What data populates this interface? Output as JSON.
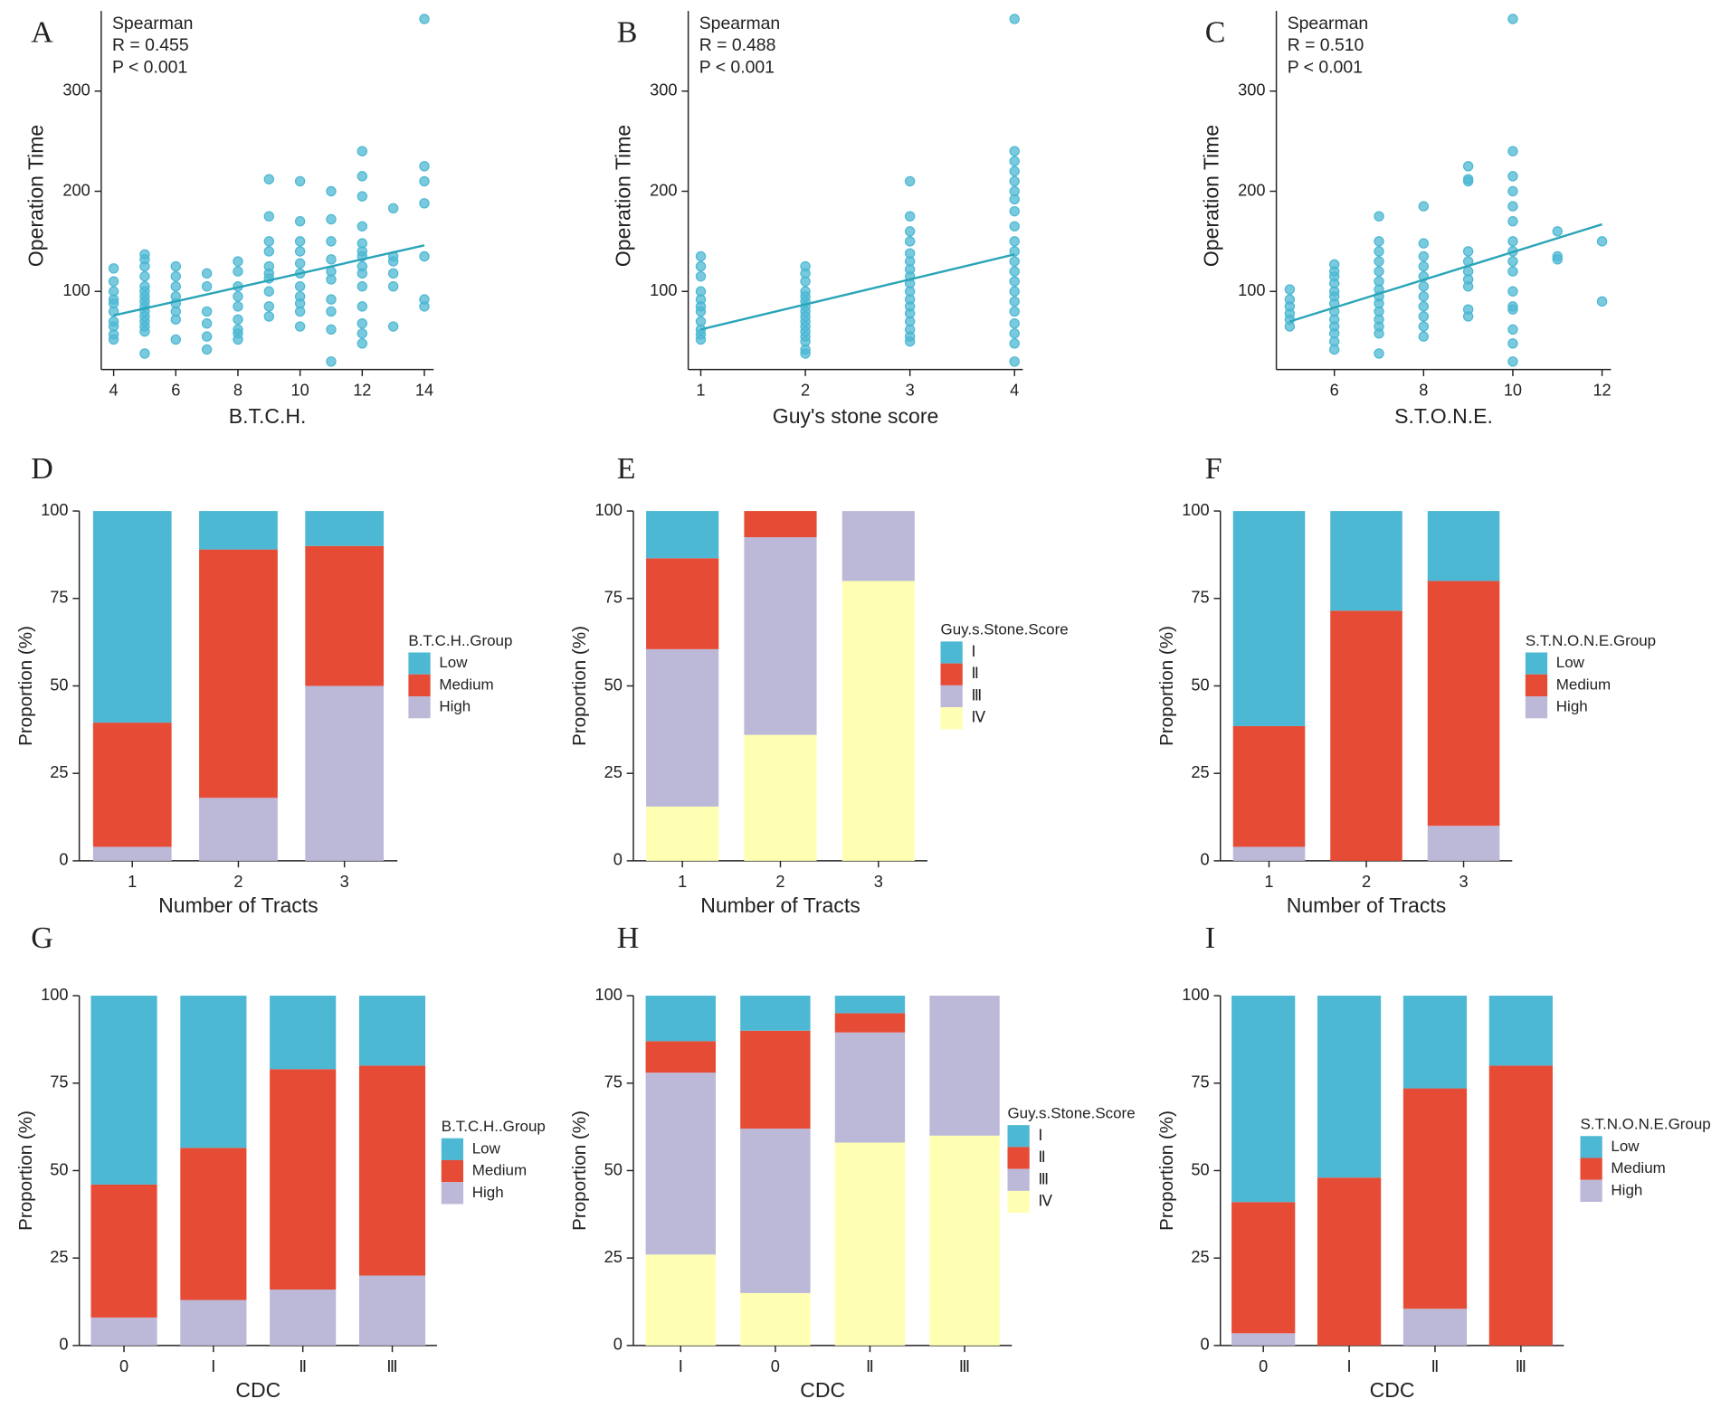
{
  "chart_data": [
    {
      "type": "scatter",
      "label": "A",
      "annotations": [
        "Spearman",
        "R = 0.455",
        "P < 0.001"
      ],
      "xlabel": "B.T.C.H.",
      "ylabel": "Operation Time",
      "color": "#4db8d3",
      "x": [
        4,
        4,
        4,
        4,
        4,
        4,
        4,
        4,
        4,
        4,
        5,
        5,
        5,
        5,
        5,
        5,
        5,
        5,
        5,
        5,
        5,
        5,
        5,
        5,
        5,
        6,
        6,
        6,
        6,
        6,
        6,
        6,
        6,
        7,
        7,
        7,
        7,
        7,
        7,
        8,
        8,
        8,
        8,
        8,
        8,
        8,
        8,
        8,
        9,
        9,
        9,
        9,
        9,
        9,
        9,
        9,
        9,
        9,
        10,
        10,
        10,
        10,
        10,
        10,
        10,
        10,
        10,
        10,
        10,
        11,
        11,
        11,
        11,
        11,
        11,
        11,
        11,
        11,
        11,
        12,
        12,
        12,
        12,
        12,
        12,
        12,
        12,
        12,
        12,
        12,
        12,
        12,
        12,
        13,
        13,
        13,
        13,
        13,
        13,
        14,
        14,
        14,
        14,
        14,
        14,
        14
      ],
      "y": [
        52,
        57,
        65,
        70,
        80,
        88,
        92,
        100,
        110,
        123,
        38,
        60,
        65,
        70,
        75,
        80,
        85,
        90,
        95,
        100,
        105,
        115,
        125,
        132,
        137,
        52,
        72,
        80,
        88,
        95,
        105,
        115,
        125,
        42,
        55,
        68,
        80,
        105,
        118,
        52,
        58,
        62,
        72,
        85,
        95,
        105,
        120,
        130,
        75,
        85,
        100,
        113,
        118,
        125,
        140,
        150,
        175,
        212,
        65,
        80,
        88,
        95,
        105,
        118,
        128,
        140,
        150,
        170,
        210,
        30,
        62,
        80,
        92,
        112,
        120,
        132,
        150,
        172,
        200,
        48,
        58,
        68,
        85,
        105,
        118,
        125,
        135,
        140,
        148,
        165,
        195,
        215,
        240,
        65,
        105,
        118,
        130,
        135,
        183,
        85,
        92,
        135,
        188,
        210,
        225,
        372
      ],
      "trend": {
        "x": [
          4,
          14
        ],
        "y": [
          76,
          146
        ]
      },
      "xlim": [
        3.6,
        14.3
      ],
      "ylim": [
        22,
        380
      ],
      "xticks": [
        4,
        6,
        8,
        10,
        12,
        14
      ],
      "yticks": [
        100,
        200,
        300
      ]
    },
    {
      "type": "scatter",
      "label": "B",
      "annotations": [
        "Spearman",
        "R = 0.488",
        "P < 0.001"
      ],
      "xlabel": "Guy's stone score",
      "ylabel": "Operation Time",
      "color": "#4db8d3",
      "x": [
        1,
        1,
        1,
        1,
        1,
        1,
        1,
        1,
        1,
        1,
        1,
        2,
        2,
        2,
        2,
        2,
        2,
        2,
        2,
        2,
        2,
        2,
        2,
        2,
        2,
        2,
        2,
        3,
        3,
        3,
        3,
        3,
        3,
        3,
        3,
        3,
        3,
        3,
        3,
        3,
        3,
        3,
        3,
        3,
        4,
        4,
        4,
        4,
        4,
        4,
        4,
        4,
        4,
        4,
        4,
        4,
        4,
        4,
        4,
        4,
        4,
        4,
        4,
        4,
        4
      ],
      "y": [
        52,
        57,
        62,
        70,
        80,
        85,
        92,
        100,
        115,
        125,
        135,
        38,
        42,
        50,
        55,
        60,
        65,
        70,
        75,
        80,
        85,
        90,
        95,
        100,
        110,
        118,
        125,
        50,
        55,
        62,
        70,
        78,
        85,
        92,
        100,
        108,
        115,
        122,
        130,
        138,
        150,
        160,
        175,
        210,
        30,
        48,
        58,
        68,
        80,
        90,
        100,
        110,
        120,
        130,
        140,
        150,
        165,
        180,
        192,
        200,
        210,
        220,
        230,
        240,
        372
      ],
      "trend": {
        "x": [
          1,
          4
        ],
        "y": [
          62,
          137
        ]
      },
      "xlim": [
        0.88,
        4.08
      ],
      "ylim": [
        22,
        380
      ],
      "xticks": [
        1,
        2,
        3,
        4
      ],
      "yticks": [
        100,
        200,
        300
      ]
    },
    {
      "type": "scatter",
      "label": "C",
      "annotations": [
        "Spearman",
        "R = 0.510",
        "P < 0.001"
      ],
      "xlabel": "S.T.O.N.E.",
      "ylabel": "Operation Time",
      "color": "#4db8d3",
      "x": [
        5,
        5,
        5,
        5,
        5,
        5,
        6,
        6,
        6,
        6,
        6,
        6,
        6,
        6,
        6,
        6,
        6,
        6,
        6,
        7,
        7,
        7,
        7,
        7,
        7,
        7,
        7,
        7,
        7,
        7,
        7,
        7,
        7,
        8,
        8,
        8,
        8,
        8,
        8,
        8,
        8,
        8,
        8,
        8,
        9,
        9,
        9,
        9,
        9,
        9,
        9,
        9,
        9,
        9,
        10,
        10,
        10,
        10,
        10,
        10,
        10,
        10,
        10,
        10,
        10,
        10,
        10,
        10,
        10,
        10,
        11,
        11,
        11,
        12,
        12
      ],
      "y": [
        65,
        72,
        78,
        85,
        92,
        102,
        42,
        50,
        58,
        65,
        72,
        80,
        88,
        95,
        100,
        108,
        115,
        120,
        127,
        38,
        58,
        65,
        72,
        80,
        88,
        95,
        102,
        110,
        120,
        130,
        140,
        150,
        175,
        55,
        65,
        75,
        85,
        95,
        105,
        115,
        125,
        135,
        148,
        185,
        75,
        82,
        105,
        112,
        120,
        130,
        140,
        210,
        212,
        225,
        30,
        48,
        62,
        82,
        85,
        100,
        120,
        130,
        140,
        150,
        170,
        185,
        200,
        215,
        240,
        372,
        132,
        135,
        160,
        90,
        150
      ],
      "trend": {
        "x": [
          5,
          12
        ],
        "y": [
          70,
          167
        ]
      },
      "xlim": [
        4.7,
        12.2
      ],
      "ylim": [
        22,
        380
      ],
      "xticks": [
        6,
        8,
        10,
        12
      ],
      "yticks": [
        100,
        200,
        300
      ]
    },
    {
      "type": "bar",
      "stacked": true,
      "label": "D",
      "xlabel": "Number of Tracts",
      "ylabel": "Proportion (%)",
      "legend_title": "B.T.C.H..Group",
      "categories": [
        "1",
        "2",
        "3"
      ],
      "series": [
        {
          "name": "Low",
          "color": "#4db8d3",
          "values": [
            60.5,
            11,
            10
          ]
        },
        {
          "name": "Medium",
          "color": "#e64b35",
          "values": [
            35.5,
            71,
            40
          ]
        },
        {
          "name": "High",
          "color": "#bcb8d8",
          "values": [
            4,
            18,
            50
          ]
        }
      ],
      "ylim": [
        0,
        100
      ],
      "yticks": [
        0,
        25,
        50,
        75,
        100
      ]
    },
    {
      "type": "bar",
      "stacked": true,
      "label": "E",
      "xlabel": "Number of Tracts",
      "ylabel": "Proportion (%)",
      "legend_title": "Guy.s.Stone.Score",
      "categories": [
        "1",
        "2",
        "3"
      ],
      "series": [
        {
          "name": "Ⅰ",
          "color": "#4db8d3",
          "values": [
            13.5,
            0,
            0
          ]
        },
        {
          "name": "Ⅱ",
          "color": "#e64b35",
          "values": [
            26,
            7.5,
            0
          ]
        },
        {
          "name": "Ⅲ",
          "color": "#bcb8d8",
          "values": [
            45,
            56.5,
            20
          ]
        },
        {
          "name": "Ⅳ",
          "color": "#ffffb3",
          "values": [
            15.5,
            36,
            80
          ]
        }
      ],
      "ylim": [
        0,
        100
      ],
      "yticks": [
        0,
        25,
        50,
        75,
        100
      ]
    },
    {
      "type": "bar",
      "stacked": true,
      "label": "F",
      "xlabel": "Number of Tracts",
      "ylabel": "Proportion (%)",
      "legend_title": "S.T.N.O.N.E.Group",
      "categories": [
        "1",
        "2",
        "3"
      ],
      "series": [
        {
          "name": "Low",
          "color": "#4db8d3",
          "values": [
            61.5,
            28.5,
            20
          ]
        },
        {
          "name": "Medium",
          "color": "#e64b35",
          "values": [
            34.5,
            71.5,
            70
          ]
        },
        {
          "name": "High",
          "color": "#bcb8d8",
          "values": [
            4,
            0,
            10
          ]
        }
      ],
      "ylim": [
        0,
        100
      ],
      "yticks": [
        0,
        25,
        50,
        75,
        100
      ]
    },
    {
      "type": "bar",
      "stacked": true,
      "label": "G",
      "xlabel": "CDC",
      "ylabel": "Proportion (%)",
      "legend_title": "B.T.C.H..Group",
      "categories": [
        "0",
        "Ⅰ",
        "Ⅱ",
        "Ⅲ"
      ],
      "series": [
        {
          "name": "Low",
          "color": "#4db8d3",
          "values": [
            54,
            43.5,
            21,
            20
          ]
        },
        {
          "name": "Medium",
          "color": "#e64b35",
          "values": [
            38,
            43.5,
            63,
            60
          ]
        },
        {
          "name": "High",
          "color": "#bcb8d8",
          "values": [
            8,
            13,
            16,
            20
          ]
        }
      ],
      "ylim": [
        0,
        100
      ],
      "yticks": [
        0,
        25,
        50,
        75,
        100
      ]
    },
    {
      "type": "bar",
      "stacked": true,
      "label": "H",
      "xlabel": "CDC",
      "ylabel": "Proportion (%)",
      "legend_title": "Guy.s.Stone.Score",
      "categories": [
        "Ⅰ",
        "0",
        "Ⅱ",
        "Ⅲ"
      ],
      "series": [
        {
          "name": "Ⅰ",
          "color": "#4db8d3",
          "values": [
            13,
            10,
            5,
            0
          ]
        },
        {
          "name": "Ⅱ",
          "color": "#e64b35",
          "values": [
            9,
            28,
            5.5,
            0
          ]
        },
        {
          "name": "Ⅲ",
          "color": "#bcb8d8",
          "values": [
            52,
            47,
            31.5,
            40
          ]
        },
        {
          "name": "Ⅳ",
          "color": "#ffffb3",
          "values": [
            26,
            15,
            58,
            60
          ]
        }
      ],
      "ylim": [
        0,
        100
      ],
      "yticks": [
        0,
        25,
        50,
        75,
        100
      ]
    },
    {
      "type": "bar",
      "stacked": true,
      "label": "I",
      "xlabel": "CDC",
      "ylabel": "Proportion (%)",
      "legend_title": "S.T.N.O.N.E.Group",
      "categories": [
        "0",
        "Ⅰ",
        "Ⅱ",
        "Ⅲ"
      ],
      "series": [
        {
          "name": "Low",
          "color": "#4db8d3",
          "values": [
            59,
            52,
            26.5,
            20
          ]
        },
        {
          "name": "Medium",
          "color": "#e64b35",
          "values": [
            37.5,
            48,
            63,
            80
          ]
        },
        {
          "name": "High",
          "color": "#bcb8d8",
          "values": [
            3.5,
            0,
            10.5,
            0
          ]
        }
      ],
      "ylim": [
        0,
        100
      ],
      "yticks": [
        0,
        25,
        50,
        75,
        100
      ]
    }
  ]
}
